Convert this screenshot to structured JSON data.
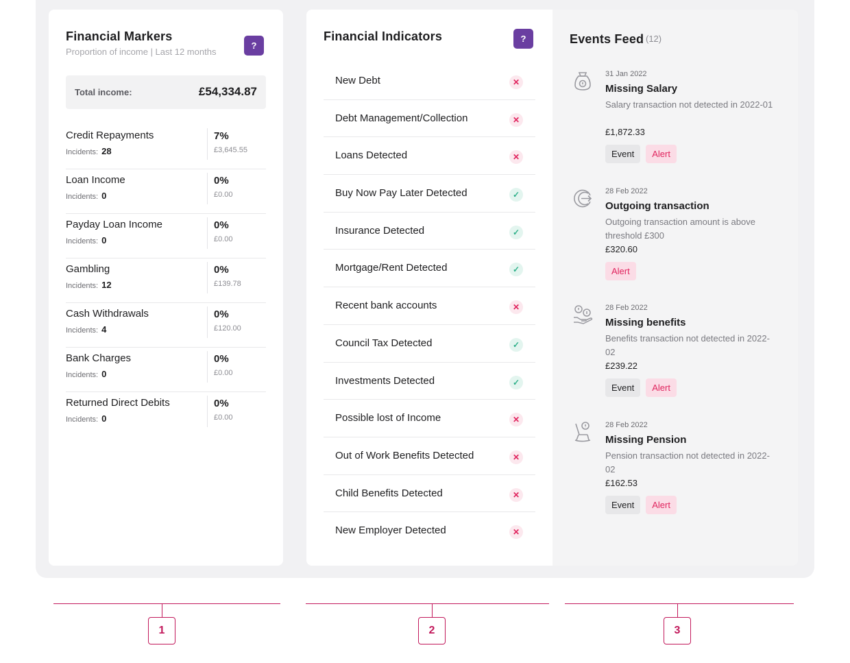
{
  "financial_markers": {
    "title": "Financial Markers",
    "subtitle": "Proportion of income | Last 12 months",
    "help_label": "?",
    "total_label": "Total income:",
    "total_value": "£54,334.87",
    "incidents_label": "Incidents:",
    "items": [
      {
        "name": "Credit Repayments",
        "incidents": "28",
        "percent": "7%",
        "amount": "£3,645.55"
      },
      {
        "name": "Loan Income",
        "incidents": "0",
        "percent": "0%",
        "amount": "£0.00"
      },
      {
        "name": "Payday Loan Income",
        "incidents": "0",
        "percent": "0%",
        "amount": "£0.00"
      },
      {
        "name": "Gambling",
        "incidents": "12",
        "percent": "0%",
        "amount": "£139.78"
      },
      {
        "name": "Cash Withdrawals",
        "incidents": "4",
        "percent": "0%",
        "amount": "£120.00"
      },
      {
        "name": "Bank Charges",
        "incidents": "0",
        "percent": "0%",
        "amount": "£0.00"
      },
      {
        "name": "Returned Direct Debits",
        "incidents": "0",
        "percent": "0%",
        "amount": "£0.00"
      }
    ]
  },
  "financial_indicators": {
    "title": "Financial Indicators",
    "help_label": "?",
    "items": [
      {
        "label": "New Debt",
        "status": "no",
        "glyph": "✕"
      },
      {
        "label": "Debt Management/Collection",
        "status": "no",
        "glyph": "✕"
      },
      {
        "label": "Loans Detected",
        "status": "no",
        "glyph": "✕"
      },
      {
        "label": "Buy Now Pay Later Detected",
        "status": "yes",
        "glyph": "✓"
      },
      {
        "label": "Insurance Detected",
        "status": "yes",
        "glyph": "✓"
      },
      {
        "label": "Mortgage/Rent Detected",
        "status": "yes",
        "glyph": "✓"
      },
      {
        "label": "Recent bank accounts",
        "status": "no",
        "glyph": "✕"
      },
      {
        "label": "Council Tax Detected",
        "status": "yes",
        "glyph": "✓"
      },
      {
        "label": "Investments Detected",
        "status": "yes",
        "glyph": "✓"
      },
      {
        "label": "Possible lost of Income",
        "status": "no",
        "glyph": "✕"
      },
      {
        "label": "Out of Work Benefits Detected",
        "status": "no",
        "glyph": "✕"
      },
      {
        "label": "Child Benefits Detected",
        "status": "no",
        "glyph": "✕"
      },
      {
        "label": "New Employer Detected",
        "status": "no",
        "glyph": "✕"
      }
    ]
  },
  "events_feed": {
    "title": "Events Feed",
    "count": "(12)",
    "events": [
      {
        "icon": "money-bag-icon",
        "date": "31 Jan 2022",
        "title": "Missing Salary",
        "description": "Salary transaction not detected in 2022-01",
        "amount": "£1,872.33",
        "tags": [
          "Event",
          "Alert"
        ]
      },
      {
        "icon": "outgoing-arrow-icon",
        "date": "28 Feb 2022",
        "title": "Outgoing transaction",
        "description": "Outgoing transaction amount is above threshold £300",
        "amount": "£320.60",
        "tags": [
          "Alert"
        ]
      },
      {
        "icon": "benefits-hand-coins-icon",
        "date": "28 Feb 2022",
        "title": "Missing benefits",
        "description": "Benefits transaction not detected in 2022-02",
        "amount": "£239.22",
        "tags": [
          "Event",
          "Alert"
        ]
      },
      {
        "icon": "pension-rocking-chair-icon",
        "date": "28 Feb 2022",
        "title": "Missing Pension",
        "description": "Pension transaction not detected in 2022-02",
        "amount": "£162.53",
        "tags": [
          "Event",
          "Alert"
        ]
      }
    ]
  },
  "callouts": [
    "1",
    "2",
    "3"
  ],
  "colors": {
    "accent": "#6a3ea1",
    "alert": "#e0245e",
    "success": "#2eb089",
    "callout": "#c2185b"
  }
}
